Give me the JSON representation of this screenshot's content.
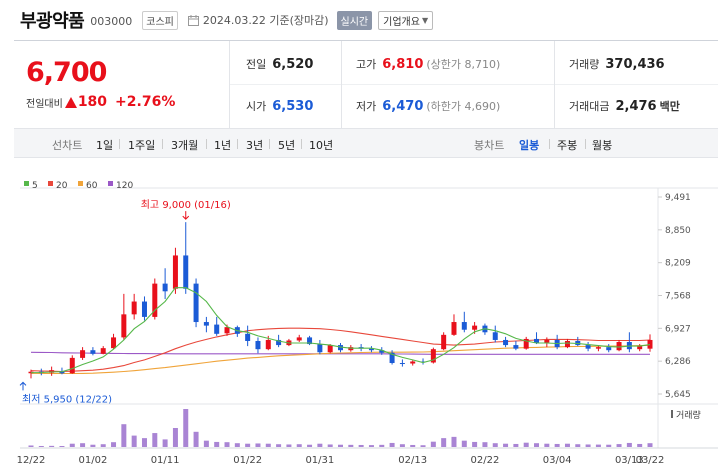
{
  "header": {
    "stock_name": "부광약품",
    "stock_code": "003000",
    "market": "코스피",
    "as_of": "2024.03.22 기준(장마감)",
    "realtime": "실시간",
    "corp_overview": "기업개요"
  },
  "price_panel": {
    "current_price": "6,700",
    "change_label": "전일대비",
    "change_amount": "180",
    "change_pct": "+2.76%",
    "prev_close_label": "전일",
    "prev_close": "6,520",
    "high_label": "고가",
    "high": "6,810",
    "upper_limit": "(상한가 8,710)",
    "volume_label": "거래량",
    "volume": "370,436",
    "open_label": "시가",
    "open": "6,530",
    "low_label": "저가",
    "low": "6,470",
    "lower_limit": "(하한가 4,690)",
    "value_label": "거래대금",
    "trade_value": "2,476",
    "trade_value_unit": "백만"
  },
  "tabs": {
    "line_chart": "선차트",
    "ranges": [
      "1일",
      "1주일",
      "3개월",
      "1년",
      "3년",
      "5년",
      "10년"
    ],
    "candle_chart": "봉차트",
    "candle_periods": [
      "일봉",
      "주봉",
      "월봉"
    ],
    "active_candle": "일봉"
  },
  "colors": {
    "up": "#e8101b",
    "down": "#1b5bd6",
    "ma5": "#56b84a",
    "ma20": "#e8483b",
    "ma60": "#f0a43a",
    "ma120": "#9b59c7",
    "volume": "#a984d4"
  },
  "chart_data": {
    "type": "candlestick",
    "legend": [
      {
        "name": "5",
        "color": "#56b84a"
      },
      {
        "name": "20",
        "color": "#e8483b"
      },
      {
        "name": "60",
        "color": "#f0a43a"
      },
      {
        "name": "120",
        "color": "#9b59c7"
      }
    ],
    "y_ticks": [
      9491,
      8850,
      8209,
      7568,
      6927,
      6286,
      5645
    ],
    "ylim": [
      5645,
      9491
    ],
    "x_ticks": [
      "12/22",
      "01/02",
      "01/11",
      "01/22",
      "01/31",
      "02/13",
      "02/22",
      "03/04",
      "03/13",
      "03/22"
    ],
    "max_annotation": "최고 9,000 (01/16)",
    "min_annotation": "최저 5,950 (12/22)",
    "volume_label": "거래량",
    "candles": [
      {
        "o": 6050,
        "h": 6120,
        "l": 5950,
        "c": 6080
      },
      {
        "o": 6080,
        "h": 6140,
        "l": 6010,
        "c": 6060
      },
      {
        "o": 6060,
        "h": 6180,
        "l": 6000,
        "c": 6110
      },
      {
        "o": 6090,
        "h": 6160,
        "l": 6030,
        "c": 6050
      },
      {
        "o": 6050,
        "h": 6400,
        "l": 6040,
        "c": 6350
      },
      {
        "o": 6350,
        "h": 6560,
        "l": 6310,
        "c": 6500
      },
      {
        "o": 6500,
        "h": 6560,
        "l": 6400,
        "c": 6430
      },
      {
        "o": 6430,
        "h": 6580,
        "l": 6420,
        "c": 6540
      },
      {
        "o": 6540,
        "h": 6820,
        "l": 6520,
        "c": 6750
      },
      {
        "o": 6750,
        "h": 7600,
        "l": 6700,
        "c": 7200
      },
      {
        "o": 7200,
        "h": 7600,
        "l": 7100,
        "c": 7450
      },
      {
        "o": 7450,
        "h": 7550,
        "l": 7080,
        "c": 7150
      },
      {
        "o": 7150,
        "h": 7900,
        "l": 7100,
        "c": 7800
      },
      {
        "o": 7800,
        "h": 8100,
        "l": 7500,
        "c": 7650
      },
      {
        "o": 7700,
        "h": 8500,
        "l": 7600,
        "c": 8350
      },
      {
        "o": 8350,
        "h": 9000,
        "l": 7600,
        "c": 7700
      },
      {
        "o": 7800,
        "h": 7900,
        "l": 6950,
        "c": 7050
      },
      {
        "o": 7050,
        "h": 7150,
        "l": 6850,
        "c": 6980
      },
      {
        "o": 7000,
        "h": 7150,
        "l": 6780,
        "c": 6820
      },
      {
        "o": 6830,
        "h": 7000,
        "l": 6780,
        "c": 6950
      },
      {
        "o": 6950,
        "h": 6980,
        "l": 6760,
        "c": 6820
      },
      {
        "o": 6820,
        "h": 6980,
        "l": 6580,
        "c": 6680
      },
      {
        "o": 6680,
        "h": 6750,
        "l": 6440,
        "c": 6520
      },
      {
        "o": 6520,
        "h": 6780,
        "l": 6500,
        "c": 6700
      },
      {
        "o": 6700,
        "h": 6800,
        "l": 6560,
        "c": 6600
      },
      {
        "o": 6600,
        "h": 6720,
        "l": 6580,
        "c": 6690
      },
      {
        "o": 6690,
        "h": 6800,
        "l": 6660,
        "c": 6750
      },
      {
        "o": 6750,
        "h": 6780,
        "l": 6600,
        "c": 6620
      },
      {
        "o": 6620,
        "h": 6700,
        "l": 6420,
        "c": 6460
      },
      {
        "o": 6460,
        "h": 6620,
        "l": 6440,
        "c": 6600
      },
      {
        "o": 6600,
        "h": 6640,
        "l": 6460,
        "c": 6500
      },
      {
        "o": 6500,
        "h": 6600,
        "l": 6470,
        "c": 6560
      },
      {
        "o": 6560,
        "h": 6620,
        "l": 6480,
        "c": 6530
      },
      {
        "o": 6530,
        "h": 6580,
        "l": 6460,
        "c": 6500
      },
      {
        "o": 6500,
        "h": 6560,
        "l": 6410,
        "c": 6450
      },
      {
        "o": 6450,
        "h": 6500,
        "l": 6220,
        "c": 6250
      },
      {
        "o": 6250,
        "h": 6320,
        "l": 6180,
        "c": 6240
      },
      {
        "o": 6240,
        "h": 6300,
        "l": 6200,
        "c": 6280
      },
      {
        "o": 6280,
        "h": 6340,
        "l": 6220,
        "c": 6260
      },
      {
        "o": 6260,
        "h": 6550,
        "l": 6240,
        "c": 6520
      },
      {
        "o": 6520,
        "h": 6850,
        "l": 6500,
        "c": 6800
      },
      {
        "o": 6800,
        "h": 7200,
        "l": 6780,
        "c": 7050
      },
      {
        "o": 7050,
        "h": 7250,
        "l": 6850,
        "c": 6900
      },
      {
        "o": 6900,
        "h": 7050,
        "l": 6820,
        "c": 6980
      },
      {
        "o": 6980,
        "h": 7020,
        "l": 6800,
        "c": 6850
      },
      {
        "o": 6850,
        "h": 6980,
        "l": 6650,
        "c": 6700
      },
      {
        "o": 6700,
        "h": 6760,
        "l": 6560,
        "c": 6600
      },
      {
        "o": 6600,
        "h": 6680,
        "l": 6500,
        "c": 6530
      },
      {
        "o": 6530,
        "h": 6760,
        "l": 6510,
        "c": 6720
      },
      {
        "o": 6720,
        "h": 6850,
        "l": 6620,
        "c": 6650
      },
      {
        "o": 6650,
        "h": 6750,
        "l": 6560,
        "c": 6700
      },
      {
        "o": 6700,
        "h": 6800,
        "l": 6520,
        "c": 6560
      },
      {
        "o": 6560,
        "h": 6720,
        "l": 6540,
        "c": 6680
      },
      {
        "o": 6680,
        "h": 6760,
        "l": 6580,
        "c": 6600
      },
      {
        "o": 6600,
        "h": 6660,
        "l": 6480,
        "c": 6530
      },
      {
        "o": 6530,
        "h": 6600,
        "l": 6480,
        "c": 6560
      },
      {
        "o": 6560,
        "h": 6620,
        "l": 6460,
        "c": 6500
      },
      {
        "o": 6500,
        "h": 6700,
        "l": 6480,
        "c": 6660
      },
      {
        "o": 6660,
        "h": 6850,
        "l": 6460,
        "c": 6520
      },
      {
        "o": 6520,
        "h": 6620,
        "l": 6480,
        "c": 6580
      },
      {
        "o": 6530,
        "h": 6810,
        "l": 6470,
        "c": 6700
      }
    ],
    "ma5": [
      6060,
      6065,
      6075,
      6080,
      6140,
      6220,
      6290,
      6370,
      6520,
      6700,
      6920,
      7060,
      7280,
      7450,
      7720,
      7720,
      7620,
      7450,
      7180,
      6960,
      6880,
      6850,
      6780,
      6730,
      6680,
      6640,
      6640,
      6640,
      6620,
      6600,
      6560,
      6540,
      6540,
      6540,
      6500,
      6420,
      6360,
      6310,
      6260,
      6310,
      6420,
      6550,
      6720,
      6860,
      6920,
      6880,
      6820,
      6730,
      6680,
      6640,
      6640,
      6630,
      6640,
      6630,
      6610,
      6590,
      6570,
      6560,
      6580,
      6580,
      6610
    ],
    "ma20": [
      6100,
      6095,
      6090,
      6085,
      6090,
      6100,
      6110,
      6130,
      6160,
      6200,
      6260,
      6310,
      6380,
      6450,
      6530,
      6600,
      6660,
      6710,
      6760,
      6800,
      6840,
      6880,
      6900,
      6915,
      6925,
      6930,
      6930,
      6925,
      6920,
      6905,
      6885,
      6860,
      6830,
      6800,
      6770,
      6740,
      6710,
      6680,
      6650,
      6620,
      6610,
      6600,
      6610,
      6620,
      6640,
      6660,
      6670,
      6680,
      6690,
      6700,
      6710,
      6710,
      6710,
      6705,
      6700,
      6690,
      6690,
      6690,
      6690,
      6690,
      6700
    ],
    "ma60": [
      6050,
      6048,
      6046,
      6045,
      6046,
      6048,
      6052,
      6060,
      6070,
      6085,
      6100,
      6120,
      6140,
      6160,
      6185,
      6210,
      6235,
      6260,
      6285,
      6305,
      6325,
      6345,
      6360,
      6375,
      6390,
      6400,
      6410,
      6420,
      6430,
      6440,
      6445,
      6450,
      6455,
      6460,
      6462,
      6462,
      6462,
      6463,
      6465,
      6470,
      6480,
      6490,
      6500,
      6510,
      6520,
      6530,
      6540,
      6545,
      6550,
      6555,
      6560,
      6565,
      6570,
      6572,
      6575,
      6578,
      6580,
      6583,
      6586,
      6590,
      6595
    ],
    "ma120": [
      6460,
      6458,
      6455,
      6450,
      6448,
      6445,
      6442,
      6440,
      6438,
      6436,
      6434,
      6433,
      6432,
      6431,
      6430,
      6430,
      6430,
      6430,
      6430,
      6430,
      6430,
      6430,
      6430,
      6430,
      6430,
      6430,
      6430,
      6430,
      6430,
      6430,
      6430,
      6430,
      6430,
      6430,
      6430,
      6428,
      6426,
      6424,
      6422,
      6420,
      6420,
      6420,
      6420,
      6420,
      6420,
      6420,
      6420,
      6420,
      6420,
      6420,
      6420,
      6420,
      6420,
      6420,
      6420,
      6420,
      6420,
      6420,
      6420,
      6420,
      6420
    ],
    "volume": [
      120,
      80,
      90,
      70,
      260,
      300,
      180,
      220,
      380,
      1800,
      900,
      700,
      1100,
      600,
      1500,
      3000,
      1200,
      500,
      400,
      380,
      300,
      260,
      280,
      260,
      220,
      200,
      220,
      180,
      260,
      200,
      180,
      170,
      160,
      150,
      170,
      320,
      220,
      160,
      140,
      420,
      700,
      800,
      500,
      400,
      380,
      300,
      260,
      240,
      340,
      300,
      260,
      240,
      260,
      220,
      200,
      190,
      180,
      230,
      320,
      240,
      300
    ]
  }
}
